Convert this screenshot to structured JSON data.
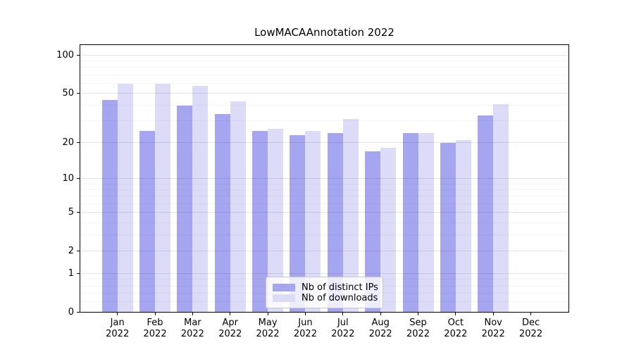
{
  "figure": {
    "background": "#ffffff"
  },
  "chart_data": {
    "type": "bar",
    "title": "LowMACAAnnotation 2022",
    "x_year": "2022",
    "categories": [
      "Jan",
      "Feb",
      "Mar",
      "Apr",
      "May",
      "Jun",
      "Jul",
      "Aug",
      "Sep",
      "Oct",
      "Nov",
      "Dec"
    ],
    "series": [
      {
        "name": "Nb of distinct IPs",
        "color": "#a5a5f0",
        "values": [
          44,
          25,
          40,
          34,
          25,
          23,
          24,
          17,
          24,
          20,
          33,
          0
        ]
      },
      {
        "name": "Nb of downloads",
        "color": "#dcdcf8",
        "values": [
          59,
          59,
          57,
          43,
          26,
          25,
          31,
          18,
          24,
          21,
          41,
          0
        ]
      }
    ],
    "yscale": "log1p",
    "yticks": [
      0,
      1,
      2,
      5,
      10,
      20,
      50,
      100
    ],
    "ylim": [
      0,
      122
    ],
    "xlabel": "",
    "ylabel": "",
    "grid": true,
    "legend_position": "lower-center"
  }
}
